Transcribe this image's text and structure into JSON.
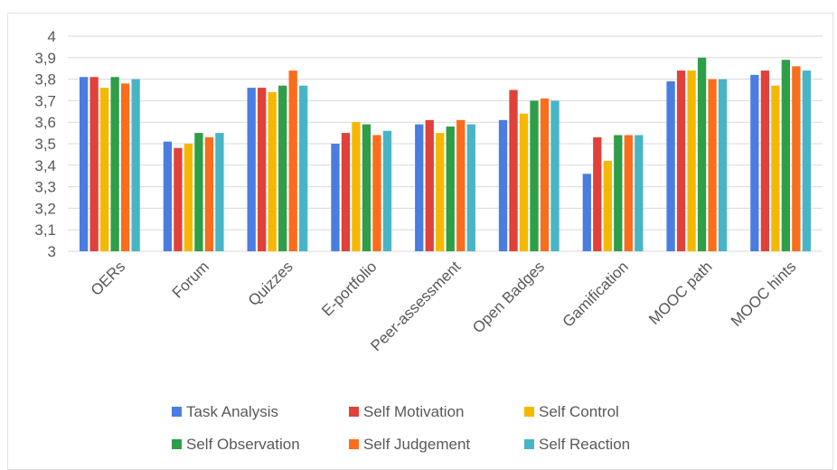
{
  "chart_data": {
    "type": "bar",
    "title": "",
    "xlabel": "",
    "ylabel": "",
    "ylim": [
      3,
      4
    ],
    "yticks": [
      "3",
      "3,1",
      "3,2",
      "3,3",
      "3,4",
      "3,5",
      "3,6",
      "3,7",
      "3,8",
      "3,9",
      "4"
    ],
    "grid": true,
    "legend_position": "bottom",
    "categories": [
      "OERs",
      "Forum",
      "Quizzes",
      "E-portfolio",
      "Peer-assessment",
      "Open Badges",
      "Gamification",
      "MOOC path",
      "MOOC hints"
    ],
    "series": [
      {
        "name": "Task Analysis",
        "color": "#4a7de0",
        "values": [
          3.81,
          3.51,
          3.76,
          3.5,
          3.59,
          3.61,
          3.36,
          3.79,
          3.82
        ]
      },
      {
        "name": "Self Motivation",
        "color": "#e0413a",
        "values": [
          3.81,
          3.48,
          3.76,
          3.55,
          3.61,
          3.75,
          3.53,
          3.84,
          3.84
        ]
      },
      {
        "name": "Self Control",
        "color": "#f5b800",
        "values": [
          3.76,
          3.5,
          3.74,
          3.6,
          3.55,
          3.64,
          3.42,
          3.84,
          3.77
        ]
      },
      {
        "name": "Self Observation",
        "color": "#2e9e48",
        "values": [
          3.81,
          3.55,
          3.77,
          3.59,
          3.58,
          3.7,
          3.54,
          3.9,
          3.89
        ]
      },
      {
        "name": "Self Judgement",
        "color": "#fa6d1c",
        "values": [
          3.78,
          3.53,
          3.84,
          3.54,
          3.61,
          3.71,
          3.54,
          3.8,
          3.86
        ]
      },
      {
        "name": "Self Reaction",
        "color": "#47b5c6",
        "values": [
          3.8,
          3.55,
          3.77,
          3.56,
          3.59,
          3.7,
          3.54,
          3.8,
          3.84
        ]
      }
    ]
  }
}
